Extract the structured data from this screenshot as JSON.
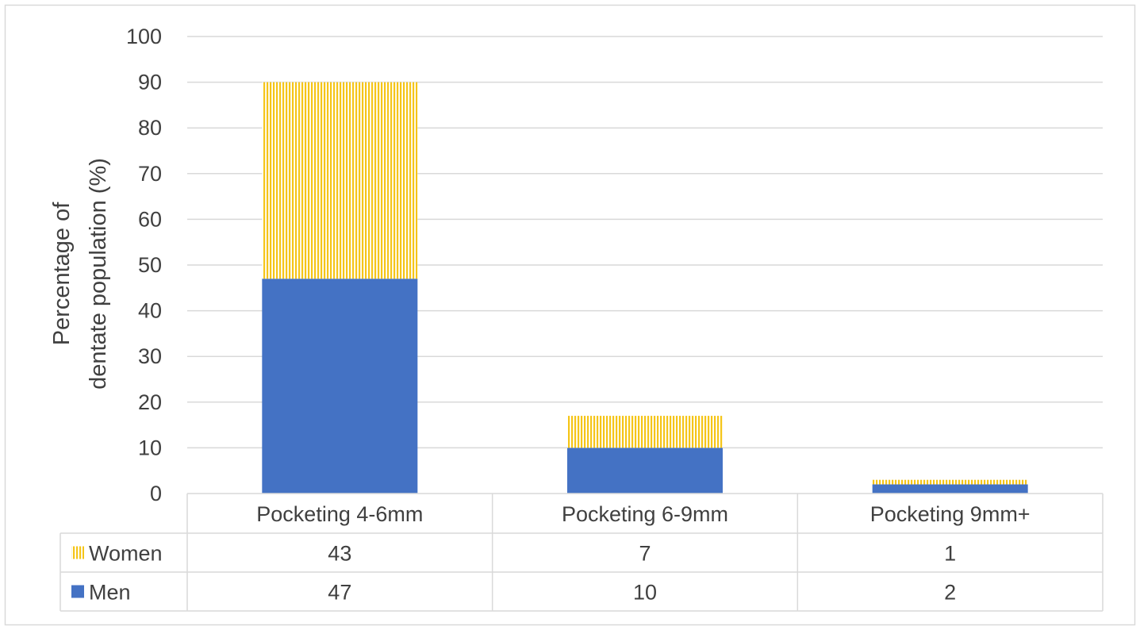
{
  "chart_data": {
    "type": "bar",
    "stacked": true,
    "categories": [
      "Pocketing 4-6mm",
      "Pocketing 6-9mm",
      "Pocketing 9mm+"
    ],
    "series": [
      {
        "name": "Men",
        "values": [
          47,
          10,
          2
        ],
        "color": "#4472c4",
        "pattern": "solid"
      },
      {
        "name": "Women",
        "values": [
          43,
          7,
          1
        ],
        "color": "#f5c518",
        "pattern": "vertical-stripes"
      }
    ],
    "ylabel_lines": [
      "Percentage of",
      "dentate population (%)"
    ],
    "ylim": [
      0,
      100
    ],
    "yticks": [
      0,
      10,
      20,
      30,
      40,
      50,
      60,
      70,
      80,
      90,
      100
    ],
    "grid": true,
    "legend": "data-table",
    "data_table_row_order": [
      "Women",
      "Men"
    ],
    "gridline_color": "#d9d9d9",
    "text_color": "#404040"
  }
}
